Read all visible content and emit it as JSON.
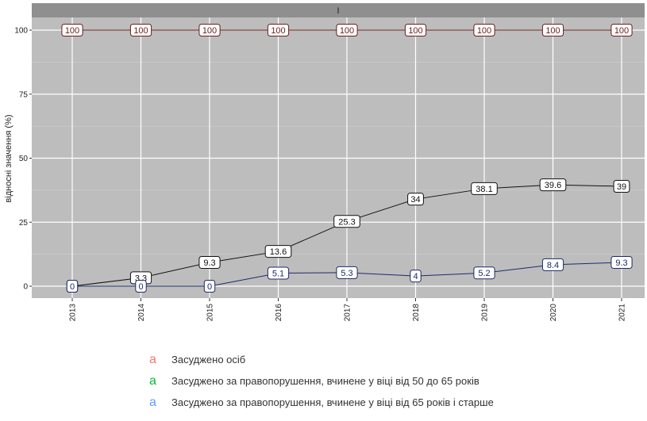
{
  "chart_data": {
    "type": "line",
    "strip_label": "I",
    "ylabel": "відносні значення (%)",
    "xlabel": "",
    "title": "",
    "categories": [
      "2013",
      "2014",
      "2015",
      "2016",
      "2017",
      "2018",
      "2019",
      "2020",
      "2021"
    ],
    "ylim": [
      0,
      100
    ],
    "yticks": [
      0,
      25,
      50,
      75,
      100
    ],
    "grid": true,
    "legend_position": "bottom",
    "series": [
      {
        "name": "Засуджено осіб",
        "key_color": "#F8766D",
        "line_color": "#6b1c1c",
        "values": [
          100,
          100,
          100,
          100,
          100,
          100,
          100,
          100,
          100
        ]
      },
      {
        "name": "Засуджено за правопорушення, вчинене у віці від 50 до 65 років",
        "key_color": "#00BA38",
        "line_color": "#111111",
        "values": [
          0,
          3.3,
          9.3,
          13.6,
          25.3,
          34,
          38.1,
          39.6,
          39
        ]
      },
      {
        "name": "Засуджено за правопорушення, вчинене у віці від 65 років і старше",
        "key_color": "#619CFF",
        "line_color": "#1c2a6b",
        "values": [
          0,
          0,
          0,
          5.1,
          5.3,
          4,
          5.2,
          8.4,
          9.3
        ]
      }
    ],
    "legend_key_glyph": "a"
  }
}
